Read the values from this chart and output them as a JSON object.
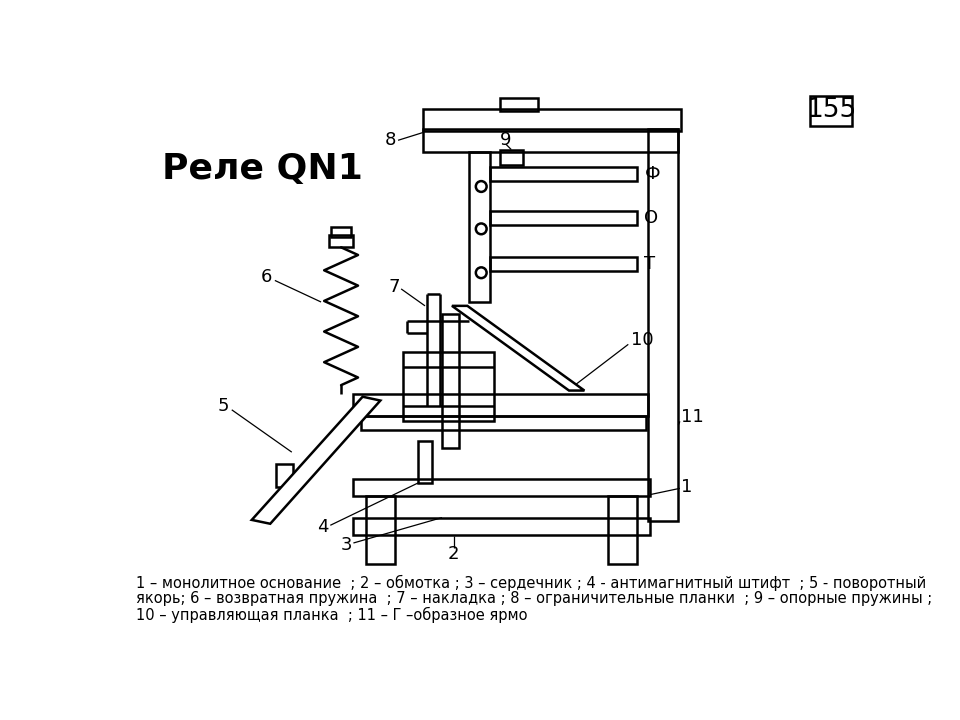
{
  "title": "Реле QN1",
  "page_number": "155",
  "caption_line1": "1 – монолитное основание  ; 2 – обмотка ; 3 – сердечник ; 4 - антимагнитный штифт  ; 5 - поворотный",
  "caption_line2": "якорь; 6 – возвратная пружина  ; 7 – накладка ; 8 – ограничительные планки  ; 9 – опорные пружины ;",
  "caption_line3": "10 – управляющая планка  ; 11 – Г –образное ярмо",
  "bg_color": "#ffffff",
  "line_color": "#000000",
  "lw": 1.8
}
